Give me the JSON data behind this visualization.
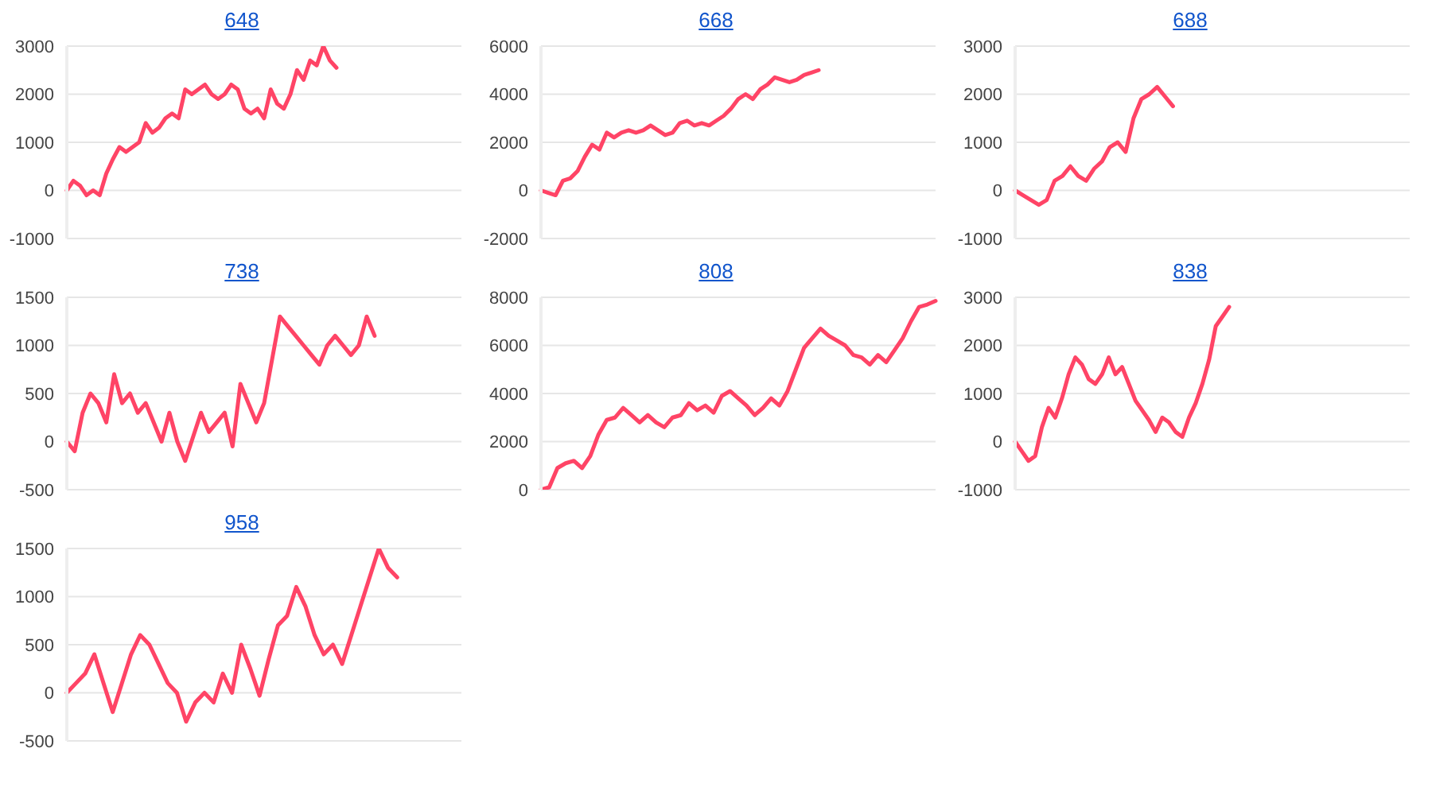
{
  "chart_data": [
    {
      "type": "line",
      "title": "648",
      "categories": [
        null,
        null,
        null,
        null,
        null,
        null,
        null,
        null,
        null,
        null,
        null,
        null,
        null,
        null,
        null,
        null,
        null,
        null,
        null,
        null,
        null,
        null,
        null,
        null,
        null,
        null,
        null,
        null,
        null,
        null,
        null,
        null,
        null,
        null,
        null,
        null,
        null,
        null,
        null,
        null,
        null,
        null,
        null,
        null,
        null,
        null,
        null,
        null,
        null,
        null,
        null,
        null,
        null,
        null,
        null,
        null,
        null,
        null,
        null,
        null,
        null
      ],
      "values": [
        0,
        200,
        100,
        -100,
        0,
        -100,
        350,
        650,
        900,
        800,
        900,
        1000,
        1400,
        1200,
        1300,
        1500,
        1600,
        1500,
        2100,
        2000,
        2100,
        2200,
        2000,
        1900,
        2000,
        2200,
        2100,
        1700,
        1600,
        1700,
        1500,
        2100,
        1800,
        1700,
        2000,
        2500,
        2300,
        2700,
        2600,
        3000,
        2700,
        2550,
        null,
        null,
        null,
        null,
        null,
        null,
        null,
        null,
        null,
        null,
        null,
        null,
        null,
        null,
        null,
        null,
        null,
        null,
        null
      ],
      "color": "#ff4466",
      "ylim": [
        -1000,
        3000
      ],
      "yticks": [
        -1000,
        0,
        1000,
        2000,
        3000
      ],
      "grid": "y",
      "tick_labels": "y"
    },
    {
      "type": "line",
      "title": "668",
      "categories": [
        null,
        null,
        null,
        null,
        null,
        null,
        null,
        null,
        null,
        null,
        null,
        null,
        null,
        null,
        null,
        null,
        null,
        null,
        null,
        null,
        null,
        null,
        null,
        null,
        null,
        null,
        null,
        null,
        null,
        null,
        null,
        null,
        null,
        null,
        null,
        null,
        null,
        null,
        null,
        null,
        null,
        null,
        null,
        null,
        null,
        null,
        null,
        null,
        null,
        null,
        null,
        null,
        null,
        null,
        null
      ],
      "values": [
        0,
        -100,
        -200,
        400,
        500,
        800,
        1400,
        1900,
        1700,
        2400,
        2200,
        2400,
        2500,
        2400,
        2500,
        2700,
        2500,
        2300,
        2400,
        2800,
        2900,
        2700,
        2800,
        2700,
        2900,
        3100,
        3400,
        3800,
        4000,
        3800,
        4200,
        4400,
        4700,
        4600,
        4500,
        4600,
        4800,
        4900,
        5000,
        null,
        null,
        null,
        null,
        null,
        null,
        null,
        null,
        null,
        null,
        null,
        null,
        null,
        null,
        null,
        null
      ],
      "color": "#ff4466",
      "ylim": [
        -2000,
        6000
      ],
      "yticks": [
        -2000,
        0,
        2000,
        4000,
        6000
      ],
      "grid": "y",
      "tick_labels": "y"
    },
    {
      "type": "line",
      "title": "688",
      "categories": [
        null,
        null,
        null,
        null,
        null,
        null,
        null,
        null,
        null,
        null,
        null,
        null,
        null,
        null,
        null,
        null,
        null,
        null,
        null,
        null,
        null,
        null,
        null,
        null,
        null,
        null,
        null,
        null,
        null,
        null,
        null,
        null,
        null,
        null,
        null,
        null,
        null,
        null,
        null,
        null,
        null,
        null,
        null,
        null,
        null,
        null,
        null,
        null,
        null,
        null,
        null
      ],
      "values": [
        0,
        -100,
        -200,
        -300,
        -200,
        200,
        300,
        500,
        300,
        200,
        450,
        600,
        900,
        1000,
        800,
        1500,
        1900,
        2000,
        2150,
        1950,
        1750,
        null,
        null,
        null,
        null,
        null,
        null,
        null,
        null,
        null,
        null,
        null,
        null,
        null,
        null,
        null,
        null,
        null,
        null,
        null,
        null,
        null,
        null,
        null,
        null,
        null,
        null,
        null,
        null,
        null,
        null
      ],
      "color": "#ff4466",
      "ylim": [
        -1000,
        3000
      ],
      "yticks": [
        -1000,
        0,
        1000,
        2000,
        3000
      ],
      "grid": "y",
      "tick_labels": "y"
    },
    {
      "type": "line",
      "title": "738",
      "categories": [
        null,
        null,
        null,
        null,
        null,
        null,
        null,
        null,
        null,
        null,
        null,
        null,
        null,
        null,
        null,
        null,
        null,
        null,
        null,
        null,
        null,
        null,
        null,
        null,
        null,
        null,
        null,
        null,
        null,
        null,
        null,
        null,
        null,
        null,
        null,
        null,
        null,
        null,
        null,
        null,
        null,
        null,
        null,
        null,
        null,
        null,
        null,
        null,
        null,
        null,
        null
      ],
      "values": [
        0,
        -100,
        300,
        500,
        400,
        200,
        700,
        400,
        500,
        300,
        400,
        200,
        0,
        300,
        0,
        -200,
        50,
        300,
        100,
        200,
        300,
        -50,
        600,
        400,
        200,
        400,
        850,
        1300,
        1200,
        1100,
        1000,
        900,
        800,
        1000,
        1100,
        1000,
        900,
        1000,
        1300,
        1100,
        null,
        null,
        null,
        null,
        null,
        null,
        null,
        null,
        null,
        null,
        null
      ],
      "color": "#ff4466",
      "ylim": [
        -500,
        1500
      ],
      "yticks": [
        -500,
        0,
        500,
        1000,
        1500
      ],
      "grid": "y",
      "tick_labels": "y"
    },
    {
      "type": "line",
      "title": "808",
      "categories": [
        null,
        null,
        null,
        null,
        null,
        null,
        null,
        null,
        null,
        null,
        null,
        null,
        null,
        null,
        null,
        null,
        null,
        null,
        null,
        null,
        null,
        null,
        null,
        null,
        null,
        null,
        null,
        null,
        null,
        null,
        null,
        null,
        null,
        null,
        null,
        null,
        null,
        null,
        null,
        null,
        null,
        null,
        null,
        null,
        null,
        null,
        null,
        null,
        null
      ],
      "values": [
        0,
        100,
        900,
        1100,
        1200,
        900,
        1400,
        2300,
        2900,
        3000,
        3400,
        3100,
        2800,
        3100,
        2800,
        2600,
        3000,
        3100,
        3600,
        3300,
        3500,
        3200,
        3900,
        4100,
        3800,
        3500,
        3100,
        3400,
        3800,
        3500,
        4100,
        5000,
        5900,
        6300,
        6700,
        6400,
        6200,
        6000,
        5600,
        5500,
        5200,
        5600,
        5300,
        5800,
        6300,
        7000,
        7600,
        7700,
        7850
      ],
      "color": "#ff4466",
      "ylim": [
        0,
        8000
      ],
      "yticks": [
        0,
        2000,
        4000,
        6000,
        8000
      ],
      "grid": "y",
      "tick_labels": "y"
    },
    {
      "type": "line",
      "title": "838",
      "categories": [
        null,
        null,
        null,
        null,
        null,
        null,
        null,
        null,
        null,
        null,
        null,
        null,
        null,
        null,
        null,
        null,
        null,
        null,
        null,
        null,
        null,
        null,
        null,
        null,
        null,
        null,
        null,
        null,
        null,
        null,
        null,
        null,
        null,
        null,
        null,
        null,
        null,
        null,
        null,
        null,
        null,
        null,
        null,
        null,
        null,
        null,
        null,
        null,
        null,
        null,
        null,
        null,
        null,
        null,
        null,
        null,
        null,
        null,
        null,
        null
      ],
      "values": [
        0,
        -200,
        -400,
        -300,
        300,
        700,
        500,
        900,
        1400,
        1750,
        1600,
        1300,
        1200,
        1400,
        1750,
        1400,
        1550,
        1200,
        850,
        650,
        450,
        200,
        500,
        400,
        200,
        100,
        500,
        800,
        1200,
        1700,
        2400,
        2600,
        2800,
        null,
        null,
        null,
        null,
        null,
        null,
        null,
        null,
        null,
        null,
        null,
        null,
        null,
        null,
        null,
        null,
        null,
        null,
        null,
        null,
        null,
        null,
        null,
        null,
        null,
        null,
        null
      ],
      "color": "#ff4466",
      "ylim": [
        -1000,
        3000
      ],
      "yticks": [
        -1000,
        0,
        1000,
        2000,
        3000
      ],
      "grid": "y",
      "tick_labels": "y"
    },
    {
      "type": "line",
      "title": "958",
      "categories": [
        null,
        null,
        null,
        null,
        null,
        null,
        null,
        null,
        null,
        null,
        null,
        null,
        null,
        null,
        null,
        null,
        null,
        null,
        null,
        null,
        null,
        null,
        null,
        null,
        null,
        null,
        null,
        null,
        null,
        null,
        null,
        null,
        null,
        null,
        null,
        null,
        null,
        null,
        null,
        null,
        null,
        null,
        null,
        null
      ],
      "values": [
        0,
        100,
        200,
        400,
        100,
        -200,
        100,
        400,
        600,
        500,
        300,
        100,
        0,
        -300,
        -100,
        0,
        -100,
        200,
        0,
        500,
        250,
        -30,
        350,
        700,
        800,
        1100,
        900,
        600,
        400,
        500,
        300,
        600,
        900,
        1200,
        1500,
        1300,
        1200,
        null,
        null,
        null,
        null,
        null,
        null,
        null
      ],
      "color": "#ff4466",
      "ylim": [
        -500,
        1500
      ],
      "yticks": [
        -500,
        0,
        500,
        1000,
        1500
      ],
      "grid": "y",
      "tick_labels": "y"
    }
  ]
}
